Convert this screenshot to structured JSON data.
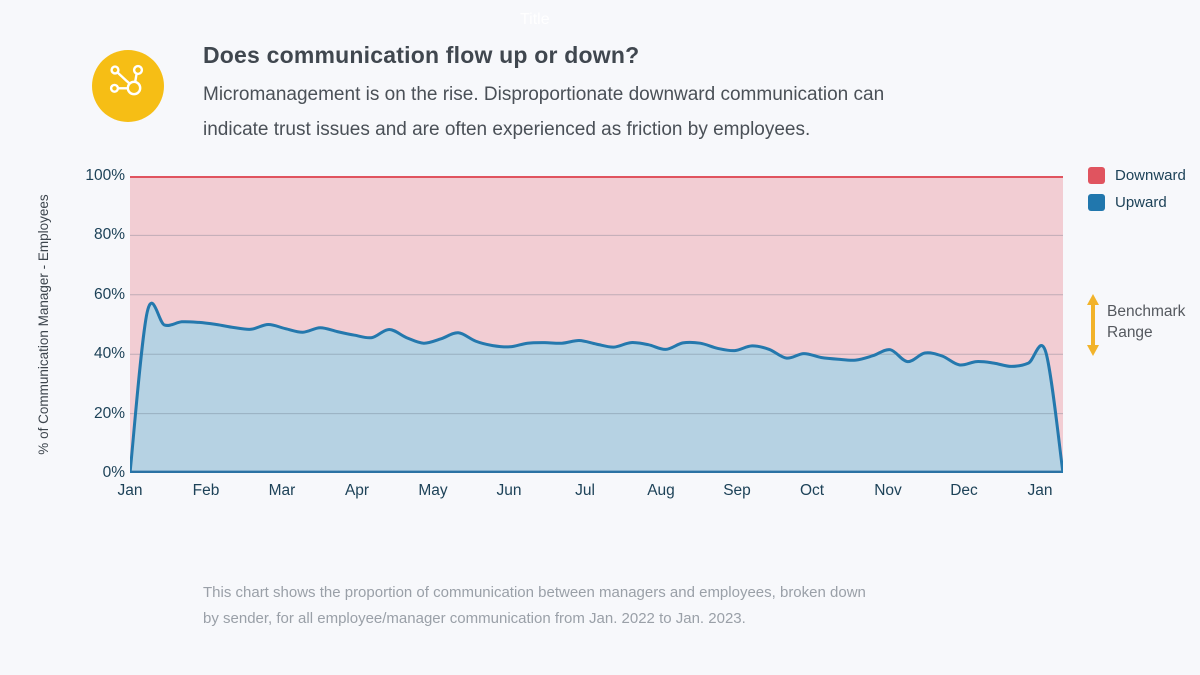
{
  "page": {
    "background": "#f7f8fb",
    "watermark": "Title"
  },
  "header": {
    "icon": "network-share-icon",
    "icon_color": "#f6be15",
    "title": "Does communication flow up or down?",
    "subtitle": "Micromanagement is on the rise. Disproportionate downward communication can indicate trust issues and are often experienced as friction by employees."
  },
  "chart": {
    "y_axis_label": "% of Communication Manager - Employees",
    "y_ticks": [
      "100%",
      "80%",
      "60%",
      "40%",
      "20%",
      "0%"
    ],
    "x_ticks": [
      "Jan",
      "Feb",
      "Mar",
      "Apr",
      "May",
      "Jun",
      "Jul",
      "Aug",
      "Sep",
      "Oct",
      "Nov",
      "Dec",
      "Jan"
    ],
    "legend": [
      {
        "label": "Downward",
        "color": "#e0545f"
      },
      {
        "label": "Upward",
        "color": "#2177ad"
      }
    ],
    "benchmark": {
      "label": "Benchmark Range",
      "color": "#f2b32a",
      "range_pct": [
        40,
        60
      ]
    },
    "caption": "This chart shows the proportion of communication between managers and employees, broken down by sender, for all employee/manager communication from Jan. 2022 to Jan. 2023."
  },
  "chart_data": {
    "type": "area",
    "stacked": true,
    "title": "Does communication flow up or down?",
    "xlabel": "",
    "ylabel": "% of Communication Manager - Employees",
    "ylim": [
      0,
      100
    ],
    "x_range": "Jan. 2022 to Jan. 2023, weekly samples",
    "x_tick_labels": [
      "Jan",
      "Feb",
      "Mar",
      "Apr",
      "May",
      "Jun",
      "Jul",
      "Aug",
      "Sep",
      "Oct",
      "Nov",
      "Dec",
      "Jan"
    ],
    "gridlines": [
      20,
      40,
      60,
      80
    ],
    "grid": true,
    "legend_position": "top-right",
    "benchmark_range_pct": [
      40,
      60
    ],
    "series": [
      {
        "name": "Upward",
        "color": "#2478ad",
        "fill": "#b6d2e3",
        "values": [
          0,
          54.3,
          49.8,
          50.9,
          50.7,
          50.0,
          49.0,
          48.4,
          50.0,
          48.6,
          47.4,
          48.9,
          47.6,
          46.4,
          45.6,
          48.3,
          45.6,
          43.7,
          45.2,
          47.2,
          44.4,
          42.9,
          42.5,
          43.7,
          43.9,
          43.7,
          44.6,
          43.4,
          42.4,
          43.9,
          43.2,
          41.6,
          43.8,
          43.7,
          42.0,
          41.2,
          42.8,
          41.6,
          38.7,
          40.2,
          38.9,
          38.3,
          38.0,
          39.5,
          41.5,
          37.5,
          40.4,
          39.4,
          36.4,
          37.5,
          37.0,
          35.9,
          37.0,
          40.8,
          0
        ]
      },
      {
        "name": "Downward",
        "color": "#e0545f",
        "fill": "#f2cdd3",
        "note": "stacked complement: 100 minus Upward at every sample"
      }
    ]
  }
}
